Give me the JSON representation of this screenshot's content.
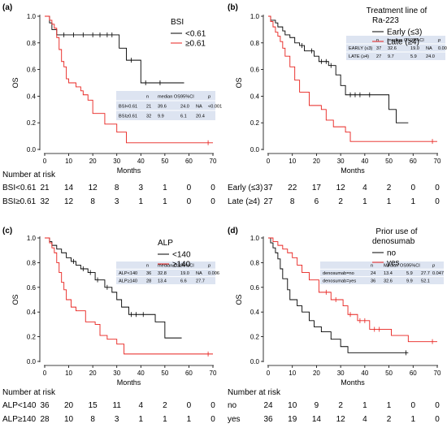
{
  "colors": {
    "black_curve": "#000000",
    "red_curve": "#e8211d",
    "table_fill": "#dde4f1"
  },
  "chart_data": [
    {
      "type": "line",
      "panel_label": "(a)",
      "ylabel": "OS",
      "xlabel": "Months",
      "xlim": [
        0,
        70
      ],
      "ylim": [
        0,
        1.0
      ],
      "xticks": [
        "0",
        "10",
        "20",
        "30",
        "40",
        "50",
        "60",
        "70"
      ],
      "yticks": [
        "0.0",
        "0.2",
        "0.4",
        "0.6",
        "0.8",
        "1.0"
      ],
      "legend": {
        "title": "BSI",
        "position": "top-right"
      },
      "series": [
        {
          "name": "<0.61",
          "color": "black",
          "steps": [
            [
              0,
              1.0
            ],
            [
              2,
              0.95
            ],
            [
              3,
              0.9
            ],
            [
              5,
              0.86
            ],
            [
              31,
              0.76
            ],
            [
              34,
              0.67
            ],
            [
              40,
              0.5
            ],
            [
              58,
              0.5
            ]
          ],
          "censors": [
            [
              8,
              0.86
            ],
            [
              12,
              0.86
            ],
            [
              16,
              0.86
            ],
            [
              20,
              0.86
            ],
            [
              23,
              0.86
            ],
            [
              26,
              0.86
            ],
            [
              28,
              0.86
            ],
            [
              36,
              0.67
            ],
            [
              42,
              0.5
            ],
            [
              48,
              0.5
            ]
          ]
        },
        {
          "name": "≥0.61",
          "color": "red",
          "steps": [
            [
              0,
              1.0
            ],
            [
              2,
              0.97
            ],
            [
              3,
              0.94
            ],
            [
              4,
              0.91
            ],
            [
              5,
              0.84
            ],
            [
              6,
              0.75
            ],
            [
              7,
              0.66
            ],
            [
              8,
              0.62
            ],
            [
              9,
              0.53
            ],
            [
              10,
              0.5
            ],
            [
              13,
              0.47
            ],
            [
              15,
              0.44
            ],
            [
              16,
              0.41
            ],
            [
              18,
              0.37
            ],
            [
              20,
              0.27
            ],
            [
              25,
              0.19
            ],
            [
              30,
              0.13
            ],
            [
              34,
              0.05
            ],
            [
              70,
              0.05
            ]
          ],
          "censors": [
            [
              68,
              0.05
            ]
          ]
        }
      ],
      "table": {
        "headers": [
          "",
          "n",
          "median OS",
          "95%CI",
          "",
          "p"
        ],
        "rows": [
          [
            "BSI<0.61",
            "21",
            "39.6",
            "24.0",
            "NA",
            "<0.001"
          ],
          [
            "BSI≥0.61",
            "32",
            "9.9",
            "6.1",
            "20.4",
            ""
          ]
        ]
      },
      "at_risk": {
        "title": "Number at risk",
        "rows": [
          {
            "label": "BSI<0.61",
            "counts": [
              "21",
              "14",
              "12",
              "8",
              "3",
              "1",
              "0",
              "0"
            ]
          },
          {
            "label": "BSI≥0.61",
            "counts": [
              "32",
              "12",
              "8",
              "3",
              "1",
              "1",
              "0",
              "0"
            ]
          }
        ]
      }
    },
    {
      "type": "line",
      "panel_label": "(b)",
      "ylabel": "OS",
      "xlabel": "Months",
      "xlim": [
        0,
        70
      ],
      "ylim": [
        0,
        1.0
      ],
      "xticks": [
        "0",
        "10",
        "20",
        "30",
        "40",
        "50",
        "60",
        "70"
      ],
      "yticks": [
        "0.0",
        "0.2",
        "0.4",
        "0.6",
        "0.8",
        "1.0"
      ],
      "legend": {
        "title_line1": "Treatment line of",
        "title_line2": "Ra-223",
        "position": "top-right"
      },
      "series": [
        {
          "name": "Early (≤3)",
          "color": "black",
          "steps": [
            [
              0,
              1.0
            ],
            [
              1,
              0.97
            ],
            [
              3,
              0.95
            ],
            [
              4,
              0.92
            ],
            [
              6,
              0.89
            ],
            [
              7,
              0.86
            ],
            [
              9,
              0.84
            ],
            [
              11,
              0.8
            ],
            [
              13,
              0.78
            ],
            [
              15,
              0.74
            ],
            [
              19,
              0.7
            ],
            [
              21,
              0.66
            ],
            [
              25,
              0.63
            ],
            [
              28,
              0.56
            ],
            [
              30,
              0.48
            ],
            [
              32,
              0.41
            ],
            [
              50,
              0.3
            ],
            [
              53,
              0.2
            ],
            [
              58,
              0.2
            ]
          ],
          "censors": [
            [
              14,
              0.78
            ],
            [
              18,
              0.74
            ],
            [
              22,
              0.66
            ],
            [
              24,
              0.66
            ],
            [
              26,
              0.63
            ],
            [
              34,
              0.41
            ],
            [
              36,
              0.41
            ],
            [
              38,
              0.41
            ],
            [
              42,
              0.41
            ]
          ]
        },
        {
          "name": "Late (≥4)",
          "color": "red",
          "steps": [
            [
              0,
              1.0
            ],
            [
              1,
              0.96
            ],
            [
              2,
              0.92
            ],
            [
              3,
              0.88
            ],
            [
              4,
              0.85
            ],
            [
              5,
              0.81
            ],
            [
              6,
              0.76
            ],
            [
              7,
              0.7
            ],
            [
              9,
              0.62
            ],
            [
              11,
              0.52
            ],
            [
              13,
              0.43
            ],
            [
              17,
              0.33
            ],
            [
              22,
              0.3
            ],
            [
              24,
              0.22
            ],
            [
              27,
              0.17
            ],
            [
              32,
              0.13
            ],
            [
              34,
              0.06
            ],
            [
              70,
              0.06
            ]
          ],
          "censors": [
            [
              68,
              0.06
            ]
          ]
        }
      ],
      "table": {
        "headers": [
          "",
          "n",
          "median OS",
          "95%CI",
          "",
          "p"
        ],
        "rows": [
          [
            "EARLY (≤3)",
            "37",
            "32.6",
            "19.0",
            "NA",
            "0.007"
          ],
          [
            "LATE (≥4)",
            "27",
            "9.7",
            "5.9",
            "24.0",
            ""
          ]
        ]
      },
      "at_risk": {
        "title": "",
        "rows": [
          {
            "label": "Early (≤3)",
            "counts": [
              "37",
              "22",
              "17",
              "12",
              "4",
              "2",
              "0",
              "0"
            ]
          },
          {
            "label": "Late (≥4)",
            "counts": [
              "27",
              "8",
              "6",
              "2",
              "1",
              "1",
              "1",
              "0"
            ]
          }
        ]
      }
    },
    {
      "type": "line",
      "panel_label": "(c)",
      "ylabel": "OS",
      "xlabel": "Months",
      "xlim": [
        0,
        70
      ],
      "ylim": [
        0,
        1.0
      ],
      "xticks": [
        "0",
        "10",
        "20",
        "30",
        "40",
        "50",
        "60",
        "70"
      ],
      "yticks": [
        "0.0",
        "0.2",
        "0.4",
        "0.6",
        "0.8",
        "1.0"
      ],
      "legend": {
        "title": "ALP",
        "position": "top-right"
      },
      "series": [
        {
          "name": "<140",
          "color": "black",
          "steps": [
            [
              0,
              1.0
            ],
            [
              2,
              0.97
            ],
            [
              3,
              0.94
            ],
            [
              5,
              0.91
            ],
            [
              7,
              0.88
            ],
            [
              9,
              0.84
            ],
            [
              11,
              0.81
            ],
            [
              13,
              0.78
            ],
            [
              15,
              0.75
            ],
            [
              18,
              0.72
            ],
            [
              21,
              0.66
            ],
            [
              25,
              0.6
            ],
            [
              28,
              0.56
            ],
            [
              30,
              0.5
            ],
            [
              32,
              0.44
            ],
            [
              35,
              0.38
            ],
            [
              46,
              0.32
            ],
            [
              50,
              0.19
            ],
            [
              57,
              0.19
            ]
          ],
          "censors": [
            [
              12,
              0.81
            ],
            [
              16,
              0.75
            ],
            [
              19,
              0.72
            ],
            [
              22,
              0.66
            ],
            [
              26,
              0.6
            ],
            [
              36,
              0.38
            ],
            [
              38,
              0.38
            ],
            [
              41,
              0.38
            ]
          ]
        },
        {
          "name": "≥140",
          "color": "red",
          "steps": [
            [
              0,
              1.0
            ],
            [
              2,
              0.96
            ],
            [
              3,
              0.92
            ],
            [
              4,
              0.88
            ],
            [
              5,
              0.8
            ],
            [
              6,
              0.72
            ],
            [
              7,
              0.64
            ],
            [
              8,
              0.58
            ],
            [
              9,
              0.5
            ],
            [
              11,
              0.44
            ],
            [
              13,
              0.41
            ],
            [
              17,
              0.32
            ],
            [
              21,
              0.3
            ],
            [
              23,
              0.21
            ],
            [
              26,
              0.18
            ],
            [
              30,
              0.14
            ],
            [
              33,
              0.06
            ],
            [
              70,
              0.06
            ]
          ],
          "censors": [
            [
              68,
              0.06
            ]
          ]
        }
      ],
      "table": {
        "headers": [
          "",
          "n",
          "median OS",
          "95%CI",
          "",
          "p"
        ],
        "rows": [
          [
            "ALP<140",
            "36",
            "32.8",
            "19.0",
            "NA",
            "0.006"
          ],
          [
            "ALP≥140",
            "28",
            "13.4",
            "6.6",
            "27.7",
            ""
          ]
        ]
      },
      "at_risk": {
        "title": "Number at risk",
        "rows": [
          {
            "label": "ALP<140",
            "counts": [
              "36",
              "20",
              "15",
              "11",
              "4",
              "2",
              "0",
              "0"
            ]
          },
          {
            "label": "ALP≥140",
            "counts": [
              "28",
              "10",
              "8",
              "3",
              "1",
              "1",
              "1",
              "0"
            ]
          }
        ]
      }
    },
    {
      "type": "line",
      "panel_label": "(d)",
      "ylabel": "OS",
      "xlabel": "Months",
      "xlim": [
        0,
        70
      ],
      "ylim": [
        0,
        1.0
      ],
      "xticks": [
        "0",
        "10",
        "20",
        "30",
        "40",
        "50",
        "60",
        "70"
      ],
      "yticks": [
        "0.0",
        "0.2",
        "0.4",
        "0.6",
        "0.8",
        "1.0"
      ],
      "legend": {
        "title_line1": "Prior use of",
        "title_line2": "denosumab",
        "position": "top-right"
      },
      "series": [
        {
          "name": "no",
          "color": "black",
          "steps": [
            [
              0,
              1.0
            ],
            [
              1,
              0.96
            ],
            [
              2,
              0.92
            ],
            [
              3,
              0.88
            ],
            [
              4,
              0.83
            ],
            [
              5,
              0.75
            ],
            [
              6,
              0.67
            ],
            [
              8,
              0.58
            ],
            [
              9,
              0.5
            ],
            [
              12,
              0.45
            ],
            [
              14,
              0.4
            ],
            [
              17,
              0.33
            ],
            [
              19,
              0.28
            ],
            [
              22,
              0.24
            ],
            [
              26,
              0.18
            ],
            [
              30,
              0.12
            ],
            [
              33,
              0.07
            ],
            [
              58,
              0.07
            ]
          ],
          "censors": [
            [
              57,
              0.07
            ]
          ]
        },
        {
          "name": "yes",
          "color": "red",
          "steps": [
            [
              0,
              1.0
            ],
            [
              2,
              0.97
            ],
            [
              4,
              0.94
            ],
            [
              6,
              0.91
            ],
            [
              8,
              0.88
            ],
            [
              10,
              0.84
            ],
            [
              12,
              0.78
            ],
            [
              14,
              0.72
            ],
            [
              17,
              0.66
            ],
            [
              21,
              0.56
            ],
            [
              26,
              0.5
            ],
            [
              31,
              0.45
            ],
            [
              33,
              0.38
            ],
            [
              37,
              0.33
            ],
            [
              42,
              0.26
            ],
            [
              51,
              0.21
            ],
            [
              58,
              0.16
            ],
            [
              70,
              0.16
            ]
          ],
          "censors": [
            [
              24,
              0.56
            ],
            [
              28,
              0.5
            ],
            [
              34,
              0.38
            ],
            [
              38,
              0.33
            ],
            [
              40,
              0.33
            ],
            [
              44,
              0.26
            ],
            [
              46,
              0.26
            ],
            [
              68,
              0.16
            ]
          ]
        }
      ],
      "table": {
        "headers": [
          "",
          "n",
          "Median OS",
          "95%CI",
          "",
          "p"
        ],
        "rows": [
          [
            "denosumab=no",
            "24",
            "13.4",
            "5.9",
            "27.7",
            "0.047"
          ],
          [
            "denosumab=yes",
            "36",
            "32.6",
            "9.9",
            "52.1",
            ""
          ]
        ]
      },
      "at_risk": {
        "title": "Number at risk",
        "rows": [
          {
            "label": "no",
            "counts": [
              "24",
              "10",
              "9",
              "2",
              "1",
              "1",
              "0",
              "0"
            ]
          },
          {
            "label": "yes",
            "counts": [
              "36",
              "19",
              "14",
              "12",
              "4",
              "2",
              "1",
              "0"
            ]
          }
        ]
      }
    }
  ]
}
